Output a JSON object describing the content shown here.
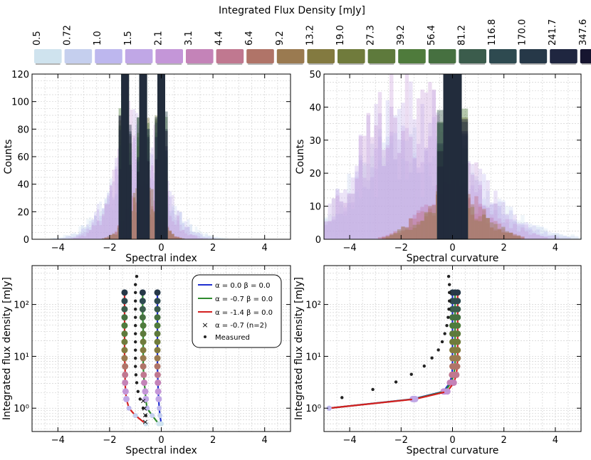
{
  "colorbar": {
    "title": "Integrated Flux Density [mJy]",
    "ticks": [
      "0.5",
      "0.72",
      "1.0",
      "1.5",
      "2.1",
      "3.1",
      "4.4",
      "6.4",
      "9.2",
      "13.2",
      "19.0",
      "27.3",
      "39.2",
      "56.4",
      "81.2",
      "116.8",
      "170.0",
      "241.7",
      "347.6"
    ],
    "colors": [
      "#cfe3ee",
      "#c5cfee",
      "#bdb7ee",
      "#c0a7e6",
      "#c496d8",
      "#c483b8",
      "#c07890",
      "#b07468",
      "#9a7a50",
      "#837a40",
      "#707b3c",
      "#5e7a3c",
      "#4f7b3c",
      "#467040",
      "#3b5c4c",
      "#2e4a50",
      "#263848",
      "#1f2640",
      "#161530"
    ]
  },
  "chart_data": [
    {
      "type": "histogram",
      "panel": "top-left",
      "xlabel": "Spectral index",
      "ylabel": "Counts",
      "xlim": [
        -5,
        5
      ],
      "ylim": [
        0,
        120
      ],
      "xticks": [
        -4,
        -2,
        0,
        2,
        4
      ],
      "yticks": [
        0,
        20,
        40,
        60,
        80,
        100,
        120
      ],
      "xtick_labels": [
        "−4",
        "−2",
        "0",
        "2",
        "4"
      ],
      "ytick_labels": [
        "0",
        "20",
        "40",
        "60",
        "80",
        "100",
        "120"
      ],
      "grid": true,
      "bin_width": 0.1,
      "bright_peaks": [
        -1.4,
        -0.7,
        0.0
      ],
      "spread": 1.0,
      "peak_count": 72
    },
    {
      "type": "histogram",
      "panel": "top-right",
      "xlabel": "Spectral curvature",
      "ylabel": "Counts",
      "xlim": [
        -5,
        5
      ],
      "ylim": [
        0,
        50
      ],
      "xticks": [
        -4,
        -2,
        0,
        2,
        4
      ],
      "yticks": [
        0,
        10,
        20,
        30,
        40,
        50
      ],
      "xtick_labels": [
        "−4",
        "−2",
        "0",
        "2",
        "4"
      ],
      "ytick_labels": [
        "0",
        "10",
        "20",
        "30",
        "40",
        "50"
      ],
      "grid": true,
      "bin_width": 0.15,
      "bright_peaks": [
        0.0
      ],
      "spread": 2.0,
      "peak_count": 30
    },
    {
      "type": "line",
      "panel": "bottom-left",
      "xlabel": "Spectral index",
      "ylabel": "Integrated flux density [mJy]",
      "xlim": [
        -5,
        5
      ],
      "ylim_log10": [
        -0.45,
        2.75
      ],
      "xticks": [
        -4,
        -2,
        0,
        2,
        4
      ],
      "xtick_labels": [
        "−4",
        "−2",
        "0",
        "2",
        "4"
      ],
      "yticks_log10": [
        0,
        1,
        2
      ],
      "ytick_labels": [
        "10⁰",
        "10¹",
        "10²"
      ],
      "grid": true,
      "flux_levels": [
        0.5,
        0.72,
        1.0,
        1.5,
        2.1,
        3.1,
        4.4,
        6.4,
        9.2,
        13.2,
        19.0,
        27.3,
        39.2,
        56.4,
        81.2,
        116.8,
        170.0
      ],
      "series": [
        {
          "name": "α = 0.0   β = 0.0",
          "color": "#1f2fd0",
          "x": [
            0.0,
            -0.05,
            -0.08,
            -0.1,
            -0.12,
            -0.13,
            -0.14,
            -0.15,
            -0.15,
            -0.15,
            -0.15,
            -0.15,
            -0.15,
            -0.15,
            -0.15,
            -0.15,
            -0.15
          ]
        },
        {
          "name": "α = -0.7   β = 0.0",
          "color": "#2e8a2e",
          "x": [
            -0.1,
            -0.35,
            -0.55,
            -0.6,
            -0.62,
            -0.66,
            -0.68,
            -0.7,
            -0.7,
            -0.7,
            -0.7,
            -0.7,
            -0.7,
            -0.72,
            -0.72,
            -0.72,
            -0.72
          ]
        },
        {
          "name": "α = -1.4   β = 0.0",
          "color": "#d42020",
          "x": [
            -0.6,
            -1.0,
            -1.25,
            -1.35,
            -1.38,
            -1.4,
            -1.4,
            -1.4,
            -1.42,
            -1.42,
            -1.42,
            -1.42,
            -1.42,
            -1.42,
            -1.42,
            -1.42,
            -1.42
          ]
        }
      ],
      "crosses": {
        "name": "α = -0.7 (n=2)",
        "x": [
          -0.62,
          -0.62,
          -0.65,
          -0.7
        ],
        "y": [
          0.55,
          0.75,
          1.0,
          1.4
        ]
      },
      "measured": {
        "name": "Measured",
        "x": [
          -0.6,
          -0.7,
          -0.82,
          -0.9,
          -0.95,
          -0.98,
          -1.0,
          -1.0,
          -1.0,
          -1.0,
          -1.0,
          -1.0,
          -1.0,
          -1.0,
          -1.0,
          -1.0,
          -1.0,
          -0.95
        ],
        "y": [
          0.72,
          1.0,
          1.5,
          2.1,
          3.1,
          4.4,
          6.4,
          9.2,
          13.2,
          19.0,
          27.3,
          39.2,
          56.4,
          81.2,
          116.8,
          170.0,
          241.7,
          347.6
        ]
      }
    },
    {
      "type": "line",
      "panel": "bottom-right",
      "xlabel": "Spectral curvature",
      "ylabel": "Integrated flux density [mJy]",
      "xlim": [
        -5,
        5
      ],
      "ylim_log10": [
        -0.45,
        2.75
      ],
      "xticks": [
        -4,
        -2,
        0,
        2,
        4
      ],
      "xtick_labels": [
        "−4",
        "−2",
        "0",
        "2",
        "4"
      ],
      "yticks_log10": [
        0,
        1,
        2
      ],
      "ytick_labels": [
        "10⁰",
        "10¹",
        "10²"
      ],
      "grid": true,
      "flux_levels": [
        1.0,
        1.5,
        2.1,
        3.1,
        4.4,
        6.4,
        9.2,
        13.2,
        19.0,
        27.3,
        39.2,
        56.4,
        81.2,
        116.8,
        170.0
      ],
      "series": [
        {
          "name": "α = 0.0   β = 0.0",
          "color": "#1f2fd0",
          "x": [
            -4.8,
            -1.55,
            -0.35,
            -0.1,
            -0.02,
            0.0,
            0.0,
            0.0,
            0.0,
            0.0,
            0.0,
            0.0,
            0.0,
            0.0,
            0.0
          ]
        },
        {
          "name": "α = -0.7   β = 0.0",
          "color": "#2e8a2e",
          "x": [
            -4.8,
            -1.5,
            -0.3,
            -0.05,
            0.05,
            0.1,
            0.1,
            0.1,
            0.1,
            0.1,
            0.1,
            0.1,
            0.1,
            0.1,
            0.1
          ]
        },
        {
          "name": "α = -1.4   β = 0.0",
          "color": "#d42020",
          "x": [
            -4.8,
            -1.45,
            -0.2,
            0.05,
            0.15,
            0.18,
            0.2,
            0.2,
            0.2,
            0.2,
            0.2,
            0.2,
            0.2,
            0.2,
            0.2
          ]
        }
      ],
      "measured": {
        "name": "Measured",
        "x": [
          -4.3,
          -3.1,
          -2.2,
          -1.6,
          -1.1,
          -0.8,
          -0.55,
          -0.4,
          -0.3,
          -0.22,
          -0.17,
          -0.14,
          -0.12,
          -0.12,
          -0.12,
          -0.15
        ],
        "y": [
          1.6,
          2.3,
          3.2,
          4.5,
          6.5,
          9.3,
          13.3,
          19.1,
          27.4,
          39.3,
          56.5,
          81.3,
          117,
          170,
          242,
          348
        ]
      }
    }
  ],
  "legend": {
    "entries": [
      "α = 0.0    β = 0.0",
      "α = -0.7   β = 0.0",
      "α = -1.4   β = 0.0",
      "α = -0.7 (n=2)",
      "Measured"
    ]
  }
}
